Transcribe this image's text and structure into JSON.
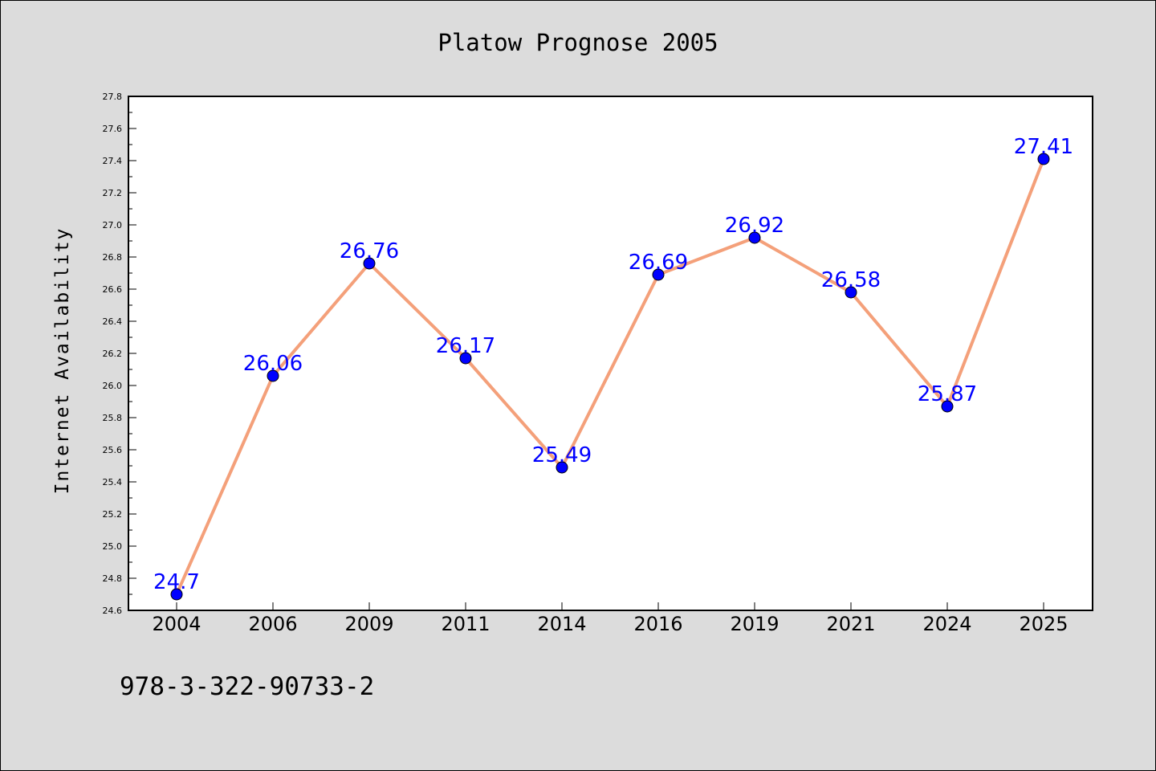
{
  "chart_data": {
    "type": "line",
    "title": "Platow Prognose 2005",
    "xlabel": "",
    "ylabel": "Internet Availability",
    "categories": [
      "2004",
      "2006",
      "2009",
      "2011",
      "2014",
      "2016",
      "2019",
      "2021",
      "2024",
      "2025"
    ],
    "series": [
      {
        "values": [
          24.7,
          26.06,
          26.76,
          26.17,
          25.49,
          26.69,
          26.92,
          26.58,
          25.87,
          27.41
        ],
        "data_labels": [
          "24.7",
          "26.06",
          "26.76",
          "26.17",
          "25.49",
          "26.69",
          "26.92",
          "26.58",
          "25.87",
          "27.41"
        ],
        "line_color": "#f4a07a",
        "marker_color": "#0000ff"
      }
    ],
    "ylim": [
      24.6,
      27.8
    ],
    "yticks": [
      "24.6",
      "24.8",
      "25.0",
      "25.2",
      "25.4",
      "25.6",
      "25.8",
      "26.0",
      "26.2",
      "26.4",
      "26.6",
      "26.8",
      "27.0",
      "27.2",
      "27.4",
      "27.6",
      "27.8"
    ],
    "grid": false,
    "legend": "none"
  },
  "footer": {
    "isbn": "978-3-322-90733-2"
  },
  "colors": {
    "background": "#dcdcdc",
    "plot_background": "#ffffff",
    "label_color": "#0000ff"
  }
}
